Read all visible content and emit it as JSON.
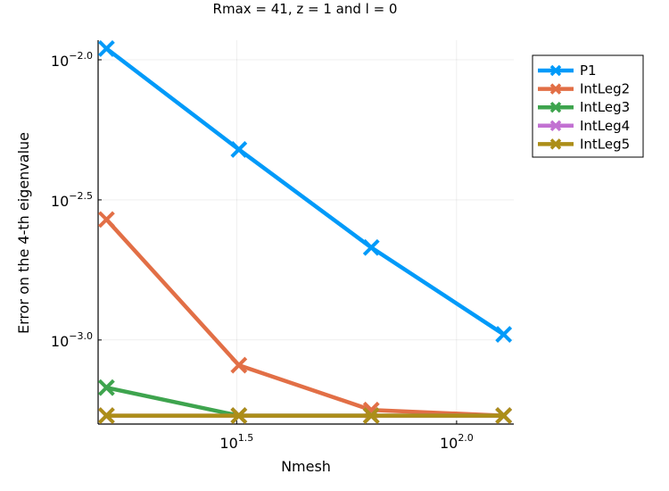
{
  "chart_data": {
    "type": "line",
    "title": "Rmax = 41, z = 1 and l = 0",
    "xlabel": "Nmesh",
    "ylabel": "Error on the 4-th eigenvalue",
    "x_scale": "log10",
    "y_scale": "log10",
    "xlim_log10": [
      1.185,
      2.13
    ],
    "ylim_log10": [
      -3.3,
      -1.93
    ],
    "x_ticks": [
      {
        "base": "10",
        "exp": "1.5",
        "value_log10": 1.5
      },
      {
        "base": "10",
        "exp": "2.0",
        "value_log10": 2.0
      }
    ],
    "y_ticks": [
      {
        "base": "10",
        "exp": "−2.0",
        "value_log10": -2.0
      },
      {
        "base": "10",
        "exp": "−2.5",
        "value_log10": -2.5
      },
      {
        "base": "10",
        "exp": "−3.0",
        "value_log10": -3.0
      }
    ],
    "x_log10": [
      1.204,
      1.505,
      1.806,
      2.107
    ],
    "grid": true,
    "legend_position": "top-right",
    "marker": "x",
    "series": [
      {
        "name": "P1",
        "color": "#009af9",
        "y_log10": [
          -1.96,
          -2.32,
          -2.67,
          -2.98
        ]
      },
      {
        "name": "IntLeg2",
        "color": "#e26f46",
        "y_log10": [
          -2.57,
          -3.09,
          -3.25,
          -3.27
        ]
      },
      {
        "name": "IntLeg3",
        "color": "#3ea44e",
        "y_log10": [
          -3.17,
          -3.27,
          -3.27,
          -3.27
        ]
      },
      {
        "name": "IntLeg4",
        "color": "#c271d2",
        "y_log10": [
          -3.27,
          -3.27,
          -3.27,
          -3.27
        ]
      },
      {
        "name": "IntLeg5",
        "color": "#ac8e18",
        "y_log10": [
          -3.27,
          -3.27,
          -3.27,
          -3.27
        ]
      }
    ]
  }
}
